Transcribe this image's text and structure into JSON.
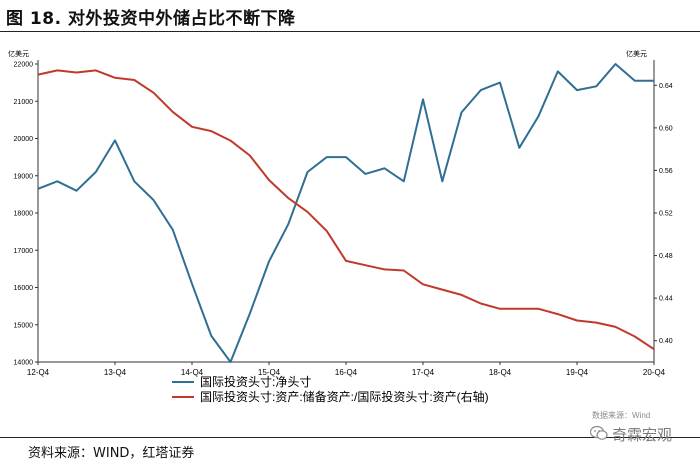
{
  "header": {
    "title": "图 18. 对外投资中外储占比不断下降"
  },
  "footer": {
    "source": "资料来源：WIND，红塔证券"
  },
  "watermark": {
    "text": "数据来源：Wind",
    "brand": "奇霖宏观",
    "icon": "wechat-icon"
  },
  "colors": {
    "blue": "#2f6f93",
    "red": "#c0392b",
    "axis": "#333333"
  },
  "chart_data": {
    "type": "line",
    "left_unit": "亿美元",
    "right_unit": "亿美元",
    "ylim_left": [
      14000,
      22000
    ],
    "ylim_right": [
      0.38,
      0.66
    ],
    "left_ticks": [
      14000,
      15000,
      16000,
      17000,
      18000,
      19000,
      20000,
      21000,
      22000
    ],
    "right_ticks": [
      0.4,
      0.44,
      0.48,
      0.52,
      0.56,
      0.6,
      0.64
    ],
    "x_ticks": [
      "12-Q4",
      "13-Q4",
      "14-Q4",
      "15-Q4",
      "16-Q4",
      "17-Q4",
      "18-Q4",
      "19-Q4",
      "20-Q4"
    ],
    "x_period_start": "2012-Q4",
    "x_period_end": "2020-Q4",
    "grid": false,
    "legend_position": "bottom",
    "series": [
      {
        "name": "国际投资头寸:净头寸",
        "axis": "left",
        "color": "#2f6f93",
        "values": [
          18650,
          18850,
          18600,
          19100,
          19950,
          18850,
          18350,
          17550,
          16100,
          14700,
          14000,
          15300,
          16700,
          17700,
          19100,
          19500,
          19500,
          19050,
          19200,
          18850,
          21050,
          18850,
          20700,
          21300,
          21500,
          19750,
          20600,
          21800,
          21300,
          21400,
          22000,
          21550,
          21550
        ]
      },
      {
        "name": "国际投资头寸:资产:储备资产:/国际投资头寸:资产(右轴)",
        "axis": "right",
        "color": "#c0392b",
        "values": [
          0.65,
          0.654,
          0.652,
          0.654,
          0.647,
          0.645,
          0.633,
          0.615,
          0.601,
          0.597,
          0.588,
          0.574,
          0.551,
          0.534,
          0.521,
          0.503,
          0.475,
          0.471,
          0.467,
          0.466,
          0.453,
          0.448,
          0.443,
          0.435,
          0.43,
          0.43,
          0.43,
          0.425,
          0.419,
          0.417,
          0.413,
          0.404,
          0.392
        ]
      }
    ]
  }
}
